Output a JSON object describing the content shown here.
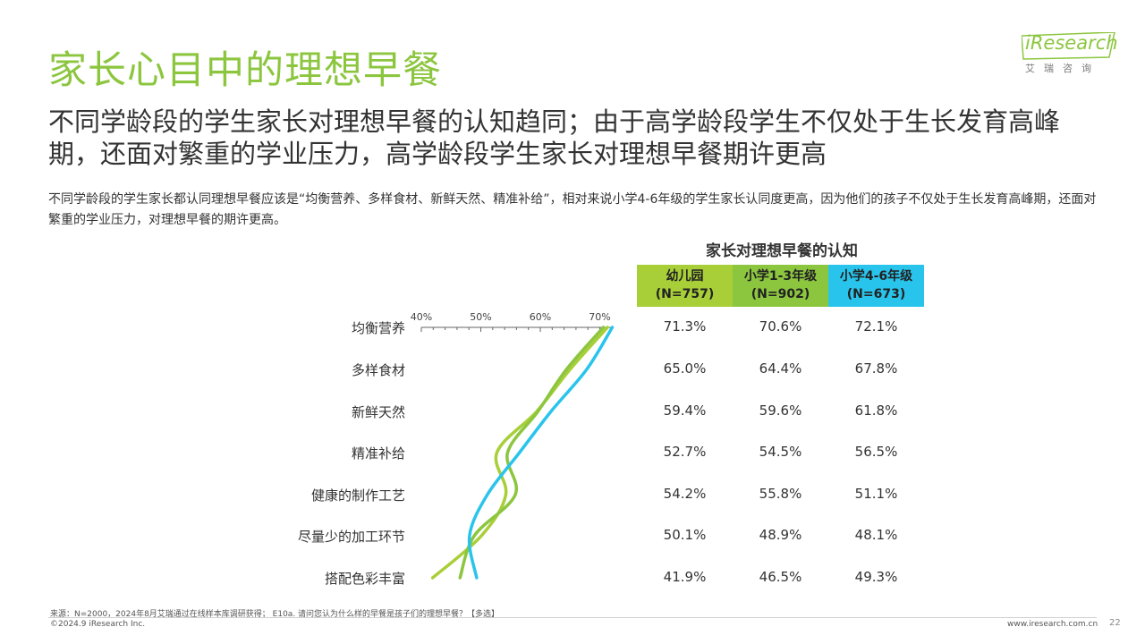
{
  "title": "家长心目中的理想早餐",
  "logo": {
    "brand": "iResearch",
    "sub": "艾瑞咨询"
  },
  "headline": "不同学龄段的学生家长对理想早餐的认知趋同；由于高学龄段学生不仅处于生长发育高峰期，还面对繁重的学业压力，高学龄段学生家长对理想早餐期许更高",
  "description": "不同学龄段的学生家长都认同理想早餐应该是“均衡营养、多样食材、新鲜天然、精准补给”，相对来说小学4-6年级的学生家长认同度更高，因为他们的孩子不仅处于生长发育高峰期，还面对繁重的学业压力，对理想早餐的期许更高。",
  "colors": {
    "kindergarten": "#a8cf38",
    "primary_low": "#8cc63f",
    "primary_high": "#29c4ec"
  },
  "chart_data": {
    "type": "line",
    "title": "家长对理想早餐的认知",
    "categories": [
      "均衡营养",
      "多样食材",
      "新鲜天然",
      "精准补给",
      "健康的制作工艺",
      "尽量少的加工环节",
      "搭配色彩丰富"
    ],
    "x_ticks": [
      "40%",
      "50%",
      "60%",
      "70%"
    ],
    "xlim": [
      40,
      72
    ],
    "series": [
      {
        "name": "幼儿园",
        "n": "(N=757)",
        "values": [
          71.3,
          65.0,
          59.4,
          52.7,
          54.2,
          50.1,
          41.9
        ],
        "labels": [
          "71.3%",
          "65.0%",
          "59.4%",
          "52.7%",
          "54.2%",
          "50.1%",
          "41.9%"
        ]
      },
      {
        "name": "小学1-3年级",
        "n": "(N=902)",
        "values": [
          70.6,
          64.4,
          59.6,
          54.5,
          55.8,
          48.9,
          46.5
        ],
        "labels": [
          "70.6%",
          "64.4%",
          "59.6%",
          "54.5%",
          "55.8%",
          "48.9%",
          "46.5%"
        ]
      },
      {
        "name": "小学4-6年级",
        "n": "(N=673)",
        "values": [
          72.1,
          67.8,
          61.8,
          56.5,
          51.1,
          48.1,
          49.3
        ],
        "labels": [
          "72.1%",
          "67.8%",
          "61.8%",
          "56.5%",
          "51.1%",
          "48.1%",
          "49.3%"
        ]
      }
    ]
  },
  "footnote": "来源：N=2000，2024年8月艾瑞通过在线样本库调研获得； E10a. 请问您认为什么样的早餐是孩子们的理想早餐？【多选】",
  "copyright": "©2024.9 iResearch Inc.",
  "site": "www.iresearch.com.cn",
  "page_number": "22"
}
